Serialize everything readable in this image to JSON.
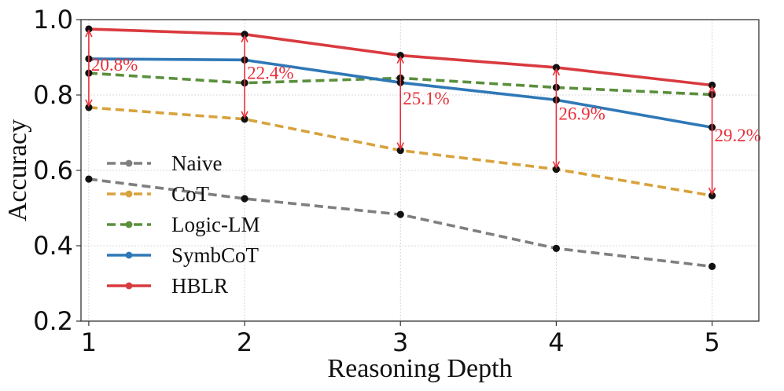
{
  "chart_data": {
    "type": "line",
    "x": [
      1,
      2,
      3,
      4,
      5
    ],
    "xlabel": "Reasoning Depth",
    "ylabel": "Accuracy",
    "xlim": [
      0.95,
      5.3
    ],
    "ylim": [
      0.2,
      1.0
    ],
    "x_ticks": [
      "1",
      "2",
      "3",
      "4",
      "5"
    ],
    "y_ticks": [
      "0.2",
      "0.4",
      "0.6",
      "0.8",
      "1.0"
    ],
    "grid": true,
    "legend_position": "left-center",
    "series": [
      {
        "name": "Naive",
        "values": [
          0.577,
          0.525,
          0.483,
          0.393,
          0.345
        ],
        "color": "#7f7f7f",
        "dash": "dashed"
      },
      {
        "name": "CoT",
        "values": [
          0.767,
          0.736,
          0.653,
          0.603,
          0.533
        ],
        "color": "#d8a23c",
        "dash": "dashed"
      },
      {
        "name": "Logic-LM",
        "values": [
          0.858,
          0.832,
          0.845,
          0.82,
          0.801
        ],
        "color": "#5a8f3c",
        "dash": "dashed"
      },
      {
        "name": "SymbCoT",
        "values": [
          0.896,
          0.893,
          0.833,
          0.787,
          0.714
        ],
        "color": "#2f78b7",
        "dash": "solid"
      },
      {
        "name": "HBLR",
        "values": [
          0.975,
          0.961,
          0.905,
          0.873,
          0.826
        ],
        "color": "#d93a3f",
        "dash": "solid"
      }
    ],
    "annotations": [
      {
        "x": 1,
        "from": 0.767,
        "to": 0.975,
        "label": "20.8%"
      },
      {
        "x": 2,
        "from": 0.736,
        "to": 0.961,
        "label": "22.4%"
      },
      {
        "x": 3,
        "from": 0.653,
        "to": 0.905,
        "label": "25.1%"
      },
      {
        "x": 4,
        "from": 0.603,
        "to": 0.873,
        "label": "26.9%"
      },
      {
        "x": 5,
        "from": 0.533,
        "to": 0.826,
        "label": "29.2%"
      }
    ],
    "annotation_color": "#e8303a"
  }
}
